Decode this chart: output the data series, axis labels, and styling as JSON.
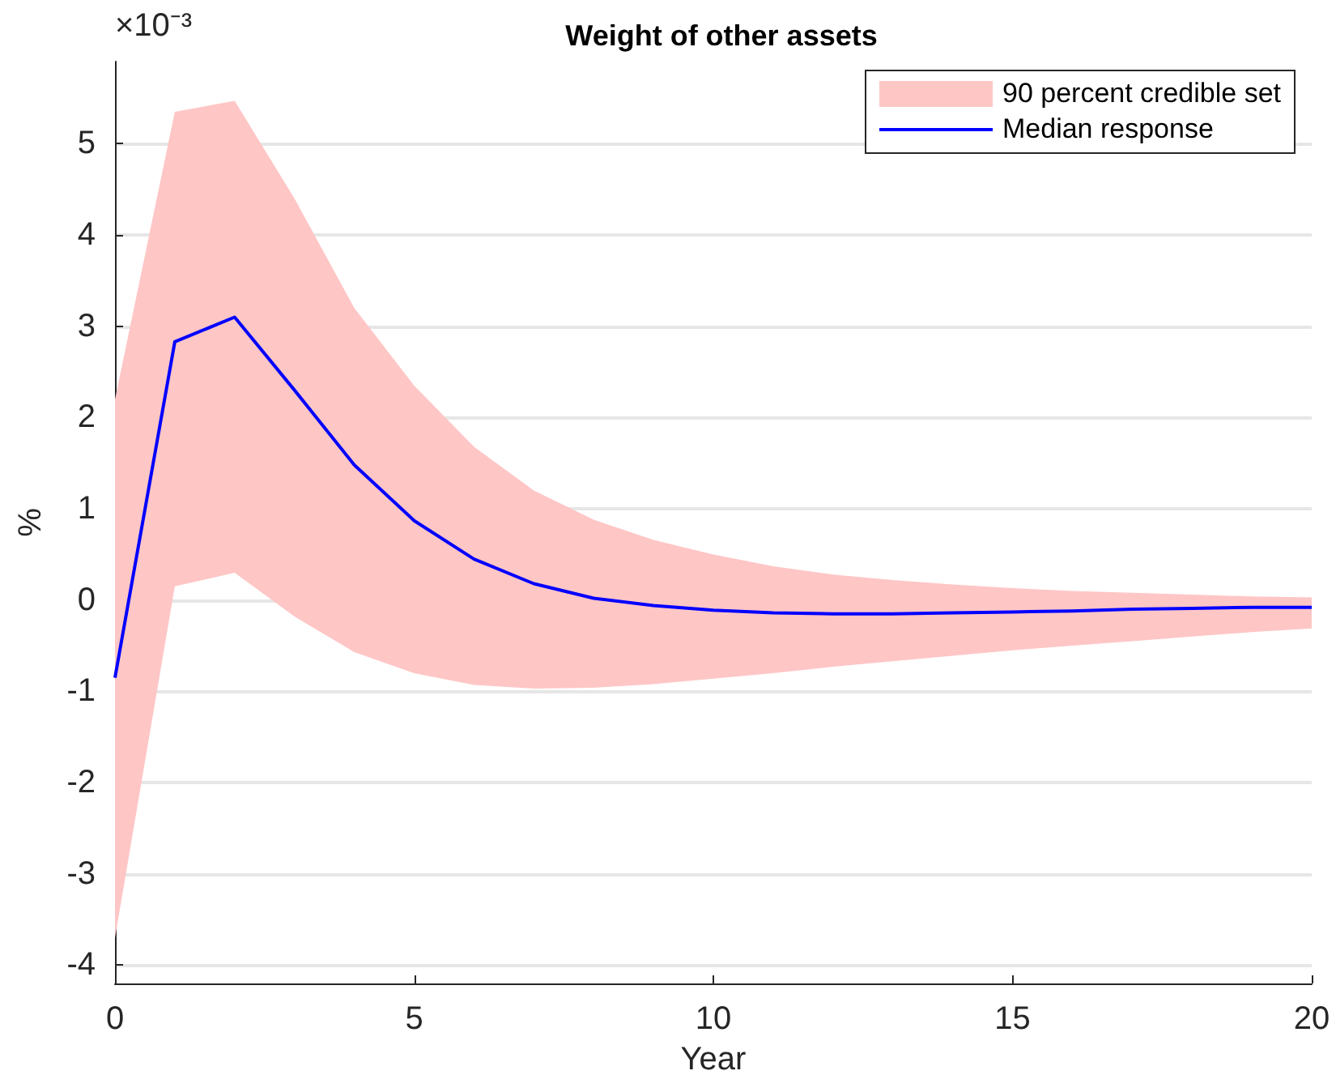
{
  "chart_data": {
    "type": "line",
    "title": "Weight of other assets",
    "xlabel": "Year",
    "ylabel": "%",
    "annotations": [
      "×10⁻³",
      "90 percent credible set"
    ],
    "x": [
      0,
      1,
      2,
      3,
      4,
      5,
      6,
      7,
      8,
      9,
      10,
      11,
      12,
      13,
      14,
      15,
      16,
      17,
      18,
      19,
      20
    ],
    "series": [
      {
        "name": "Median response",
        "color": "#0000ff",
        "values": [
          -0.85,
          2.83,
          3.1,
          2.3,
          1.48,
          0.87,
          0.45,
          0.18,
          0.02,
          -0.06,
          -0.11,
          -0.14,
          -0.15,
          -0.15,
          -0.14,
          -0.13,
          -0.12,
          -0.1,
          -0.09,
          -0.08,
          -0.08
        ],
        "lower": [
          -3.7,
          0.15,
          0.3,
          -0.18,
          -0.57,
          -0.8,
          -0.93,
          -0.97,
          -0.96,
          -0.92,
          -0.86,
          -0.8,
          -0.73,
          -0.67,
          -0.61,
          -0.55,
          -0.5,
          -0.45,
          -0.4,
          -0.35,
          -0.31
        ],
        "upper": [
          2.2,
          5.35,
          5.47,
          4.4,
          3.2,
          2.35,
          1.68,
          1.2,
          0.88,
          0.66,
          0.5,
          0.37,
          0.28,
          0.22,
          0.17,
          0.13,
          0.1,
          0.08,
          0.06,
          0.04,
          0.03
        ]
      }
    ],
    "xlim": [
      0,
      20
    ],
    "xticks": [
      0,
      5,
      10,
      15,
      20
    ],
    "ylim": [
      -4.2,
      5.9
    ],
    "yticks": [
      -4,
      -3,
      -2,
      -1,
      0,
      1,
      2,
      3,
      4,
      5
    ],
    "grid": "y",
    "legend": "top right",
    "marker": "none",
    "line_style": "solid"
  }
}
